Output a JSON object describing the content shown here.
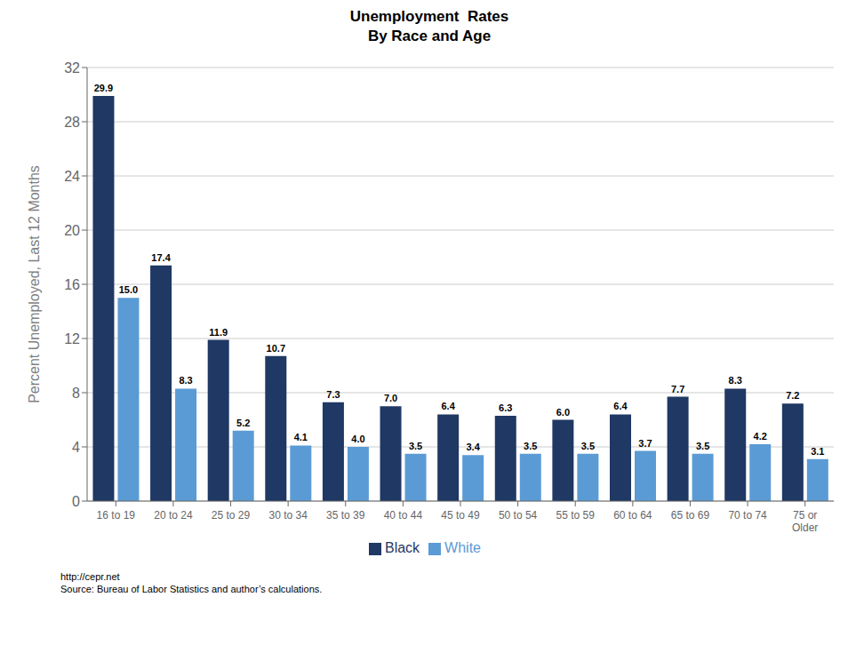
{
  "chart_data": {
    "type": "bar",
    "title": "Unemployment  Rates\nBy Race and Age",
    "ylabel": "Percent Unemployed, Last 12 Months",
    "categories": [
      "16 to 19",
      "20 to 24",
      "25 to 29",
      "30 to 34",
      "35 to 39",
      "40 to 44",
      "45 to 49",
      "50 to 54",
      "55 to 59",
      "60 to 64",
      "65 to 69",
      "70 to 74",
      "75 or\nOlder"
    ],
    "series": [
      {
        "name": "Black",
        "color": "#1F3864",
        "values": [
          29.9,
          17.4,
          11.9,
          10.7,
          7.3,
          7.0,
          6.4,
          6.3,
          6.0,
          6.4,
          7.7,
          8.3,
          7.2
        ],
        "value_labels": [
          "29.9",
          "17.4",
          "11.9",
          "10.7",
          "7.3",
          "7.0",
          "6.4",
          "6.3",
          "6.0",
          "6.4",
          "7.7",
          "8.3",
          "7.2"
        ]
      },
      {
        "name": "White",
        "color": "#5B9BD5",
        "values": [
          15.0,
          8.3,
          5.2,
          4.1,
          4.0,
          3.5,
          3.4,
          3.5,
          3.5,
          3.7,
          3.5,
          4.2,
          3.1
        ],
        "value_labels": [
          "15.0",
          "8.3",
          "5.2",
          "4.1",
          "4.0",
          "3.5",
          "3.4",
          "3.5",
          "3.5",
          "3.7",
          "3.5",
          "4.2",
          "3.1"
        ]
      }
    ],
    "ylim": [
      0,
      32
    ],
    "yticks": [
      0,
      4,
      8,
      12,
      16,
      20,
      24,
      28,
      32
    ],
    "grid": true,
    "legend": "bottom",
    "data_labels": true,
    "annotations": [
      "http://cepr.net\nSource: Bureau of Labor Statistics and author’s calculations."
    ]
  }
}
